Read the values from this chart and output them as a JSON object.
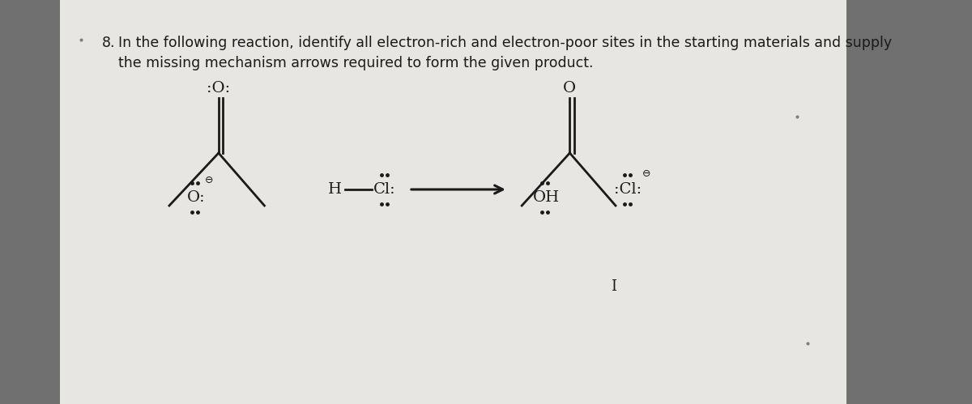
{
  "title_num": "8.",
  "title_text": " In the following reaction, identify all electron-rich and electron-poor sites in the starting materials and supply",
  "title_text2": "   the missing mechanism arrows required to form the given product.",
  "bg_outer": "#707070",
  "bg_panel": "#e8e6e2",
  "text_color": "#1a1a1a",
  "font_size_title": 12.5,
  "fig_width": 12.0,
  "fig_height": 4.99
}
